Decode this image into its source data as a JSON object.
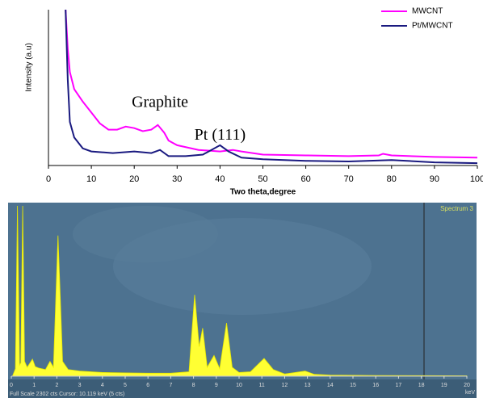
{
  "chart_data": [
    {
      "type": "line",
      "x_label": "Two theta,degree",
      "y_label": "Intensity (a.u)",
      "xlim": [
        0,
        100
      ],
      "xticks": [
        0,
        10,
        20,
        30,
        40,
        50,
        60,
        70,
        80,
        90,
        100
      ],
      "ylim": [
        0,
        100
      ],
      "legend": "top-right",
      "annotations": [
        {
          "text": "Graphite",
          "x": 26,
          "y": 40
        },
        {
          "text": "Pt (111)",
          "x": 40,
          "y": 19
        }
      ],
      "series": [
        {
          "name": "MWCNT",
          "color": "#ff00ff",
          "x": [
            4,
            4.5,
            5,
            6,
            8,
            10,
            12,
            14,
            16,
            18,
            20,
            22,
            24,
            25.5,
            27,
            28,
            30,
            35,
            40,
            43,
            45,
            50,
            60,
            70,
            77,
            78,
            80,
            90,
            100
          ],
          "values": [
            100,
            75,
            60,
            49,
            41,
            34,
            27,
            23,
            23,
            25,
            24,
            22,
            23,
            26,
            21,
            16,
            13,
            10,
            9,
            10,
            9,
            7,
            6.5,
            6,
            6.5,
            7.5,
            6.5,
            5.5,
            5
          ]
        },
        {
          "name": "Pt/MWCNT",
          "color": "#1a1a80",
          "x": [
            4,
            4.5,
            5,
            6,
            8,
            10,
            15,
            20,
            24,
            26,
            28,
            32,
            36,
            38,
            40,
            42,
            45,
            50,
            60,
            70,
            80,
            90,
            100
          ],
          "values": [
            100,
            55,
            28,
            18,
            11,
            9,
            8,
            9,
            8,
            10,
            6,
            6,
            7,
            10,
            13,
            9,
            5,
            4,
            3,
            2.6,
            3.5,
            2,
            1.5
          ]
        }
      ]
    },
    {
      "type": "area",
      "title": "Spectrum 3",
      "x_label": "keV",
      "footer": "Full Scale 2302 cts  Cursor: 10.119 keV (5 cts)",
      "xlim": [
        0,
        20
      ],
      "xticks": [
        0,
        1,
        2,
        3,
        4,
        5,
        6,
        7,
        8,
        9,
        10,
        11,
        12,
        13,
        14,
        15,
        16,
        17,
        18,
        19,
        20
      ],
      "ylim": [
        0,
        2302
      ],
      "color": "#ffff33",
      "x": [
        0.05,
        0.18,
        0.27,
        0.36,
        0.42,
        0.5,
        0.58,
        0.7,
        0.93,
        1.05,
        1.2,
        1.5,
        1.7,
        1.85,
        2.05,
        2.25,
        2.5,
        3,
        4,
        5,
        6,
        7,
        7.8,
        8.05,
        8.25,
        8.4,
        8.6,
        8.9,
        9.15,
        9.45,
        9.7,
        10,
        10.5,
        11.1,
        11.5,
        12,
        12.9,
        13.3,
        14,
        16,
        18,
        20
      ],
      "values": [
        0,
        100,
        2302,
        150,
        180,
        2302,
        200,
        120,
        230,
        130,
        110,
        90,
        200,
        120,
        1900,
        200,
        90,
        70,
        50,
        45,
        40,
        40,
        60,
        1100,
        400,
        650,
        120,
        280,
        100,
        720,
        120,
        50,
        60,
        240,
        90,
        30,
        70,
        25,
        15,
        10,
        8,
        5
      ]
    }
  ]
}
